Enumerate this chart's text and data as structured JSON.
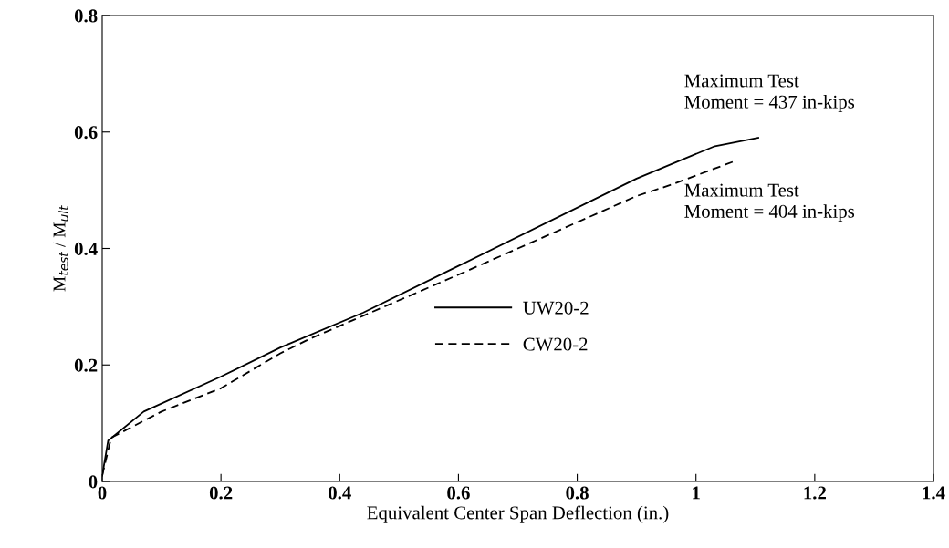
{
  "chart_data": {
    "type": "line",
    "xlabel": "Equivalent Center Span Deflection (in.)",
    "ylabel": "M$_{test}$ / M$_{ult}$",
    "annotations": [
      "Maximum Test\nMoment = 437 in-kips",
      "Maximum Test\nMoment = 404 in-kips"
    ],
    "series": [
      {
        "name": "UW20-2",
        "color": "#000000",
        "line_style": "solid",
        "x": [
          0,
          0.01,
          0.07,
          0.2,
          0.3,
          0.44,
          0.6,
          0.9,
          1.03,
          1.105
        ],
        "values": [
          0.01,
          0.07,
          0.12,
          0.18,
          0.23,
          0.29,
          0.37,
          0.52,
          0.575,
          0.59
        ]
      },
      {
        "name": "CW20-2",
        "color": "#000000",
        "line_style": "dashed",
        "x": [
          0,
          0.015,
          0.1,
          0.2,
          0.3,
          0.35,
          0.6,
          0.9,
          0.96,
          1.065
        ],
        "values": [
          0.01,
          0.075,
          0.12,
          0.16,
          0.22,
          0.245,
          0.355,
          0.49,
          0.51,
          0.55
        ]
      }
    ],
    "xlim": [
      0,
      1.4
    ],
    "xticks": [
      0,
      0.2,
      0.4,
      0.6,
      0.8,
      1,
      1.2,
      1.4
    ],
    "ylim": [
      0,
      0.8
    ],
    "yticks": [
      0,
      0.2,
      0.4,
      0.6,
      0.8
    ],
    "grid": false,
    "legend": "right",
    "marker": "none"
  }
}
